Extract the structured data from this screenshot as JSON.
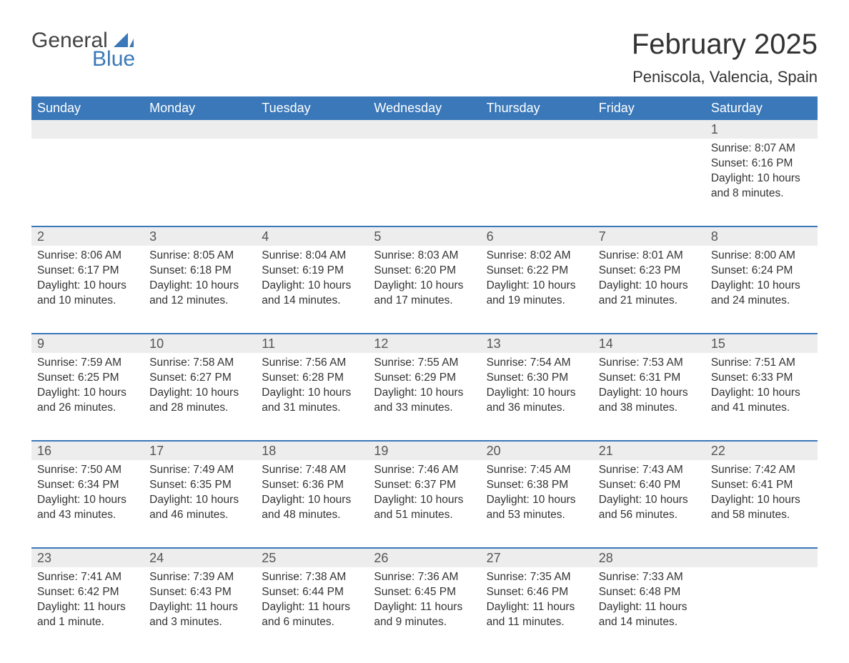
{
  "logo": {
    "word1": "General",
    "word2": "Blue"
  },
  "title": "February 2025",
  "location": "Peniscola, Valencia, Spain",
  "colors": {
    "header_bg": "#3a78b9",
    "header_text": "#ffffff",
    "day_bar_bg": "#ededed",
    "day_bar_text": "#555555",
    "body_text": "#333333",
    "rule": "#3a78b9",
    "logo_blue": "#3a78b9",
    "logo_gray": "#444444",
    "page_bg": "#ffffff"
  },
  "weekdays": [
    "Sunday",
    "Monday",
    "Tuesday",
    "Wednesday",
    "Thursday",
    "Friday",
    "Saturday"
  ],
  "prefix": {
    "sunrise": "Sunrise: ",
    "sunset": "Sunset: ",
    "daylight": "Daylight: "
  },
  "weeks": [
    [
      null,
      null,
      null,
      null,
      null,
      null,
      {
        "n": "1",
        "sr": "8:07 AM",
        "ss": "6:16 PM",
        "dl": "10 hours and 8 minutes."
      }
    ],
    [
      {
        "n": "2",
        "sr": "8:06 AM",
        "ss": "6:17 PM",
        "dl": "10 hours and 10 minutes."
      },
      {
        "n": "3",
        "sr": "8:05 AM",
        "ss": "6:18 PM",
        "dl": "10 hours and 12 minutes."
      },
      {
        "n": "4",
        "sr": "8:04 AM",
        "ss": "6:19 PM",
        "dl": "10 hours and 14 minutes."
      },
      {
        "n": "5",
        "sr": "8:03 AM",
        "ss": "6:20 PM",
        "dl": "10 hours and 17 minutes."
      },
      {
        "n": "6",
        "sr": "8:02 AM",
        "ss": "6:22 PM",
        "dl": "10 hours and 19 minutes."
      },
      {
        "n": "7",
        "sr": "8:01 AM",
        "ss": "6:23 PM",
        "dl": "10 hours and 21 minutes."
      },
      {
        "n": "8",
        "sr": "8:00 AM",
        "ss": "6:24 PM",
        "dl": "10 hours and 24 minutes."
      }
    ],
    [
      {
        "n": "9",
        "sr": "7:59 AM",
        "ss": "6:25 PM",
        "dl": "10 hours and 26 minutes."
      },
      {
        "n": "10",
        "sr": "7:58 AM",
        "ss": "6:27 PM",
        "dl": "10 hours and 28 minutes."
      },
      {
        "n": "11",
        "sr": "7:56 AM",
        "ss": "6:28 PM",
        "dl": "10 hours and 31 minutes."
      },
      {
        "n": "12",
        "sr": "7:55 AM",
        "ss": "6:29 PM",
        "dl": "10 hours and 33 minutes."
      },
      {
        "n": "13",
        "sr": "7:54 AM",
        "ss": "6:30 PM",
        "dl": "10 hours and 36 minutes."
      },
      {
        "n": "14",
        "sr": "7:53 AM",
        "ss": "6:31 PM",
        "dl": "10 hours and 38 minutes."
      },
      {
        "n": "15",
        "sr": "7:51 AM",
        "ss": "6:33 PM",
        "dl": "10 hours and 41 minutes."
      }
    ],
    [
      {
        "n": "16",
        "sr": "7:50 AM",
        "ss": "6:34 PM",
        "dl": "10 hours and 43 minutes."
      },
      {
        "n": "17",
        "sr": "7:49 AM",
        "ss": "6:35 PM",
        "dl": "10 hours and 46 minutes."
      },
      {
        "n": "18",
        "sr": "7:48 AM",
        "ss": "6:36 PM",
        "dl": "10 hours and 48 minutes."
      },
      {
        "n": "19",
        "sr": "7:46 AM",
        "ss": "6:37 PM",
        "dl": "10 hours and 51 minutes."
      },
      {
        "n": "20",
        "sr": "7:45 AM",
        "ss": "6:38 PM",
        "dl": "10 hours and 53 minutes."
      },
      {
        "n": "21",
        "sr": "7:43 AM",
        "ss": "6:40 PM",
        "dl": "10 hours and 56 minutes."
      },
      {
        "n": "22",
        "sr": "7:42 AM",
        "ss": "6:41 PM",
        "dl": "10 hours and 58 minutes."
      }
    ],
    [
      {
        "n": "23",
        "sr": "7:41 AM",
        "ss": "6:42 PM",
        "dl": "11 hours and 1 minute."
      },
      {
        "n": "24",
        "sr": "7:39 AM",
        "ss": "6:43 PM",
        "dl": "11 hours and 3 minutes."
      },
      {
        "n": "25",
        "sr": "7:38 AM",
        "ss": "6:44 PM",
        "dl": "11 hours and 6 minutes."
      },
      {
        "n": "26",
        "sr": "7:36 AM",
        "ss": "6:45 PM",
        "dl": "11 hours and 9 minutes."
      },
      {
        "n": "27",
        "sr": "7:35 AM",
        "ss": "6:46 PM",
        "dl": "11 hours and 11 minutes."
      },
      {
        "n": "28",
        "sr": "7:33 AM",
        "ss": "6:48 PM",
        "dl": "11 hours and 14 minutes."
      },
      null
    ]
  ]
}
